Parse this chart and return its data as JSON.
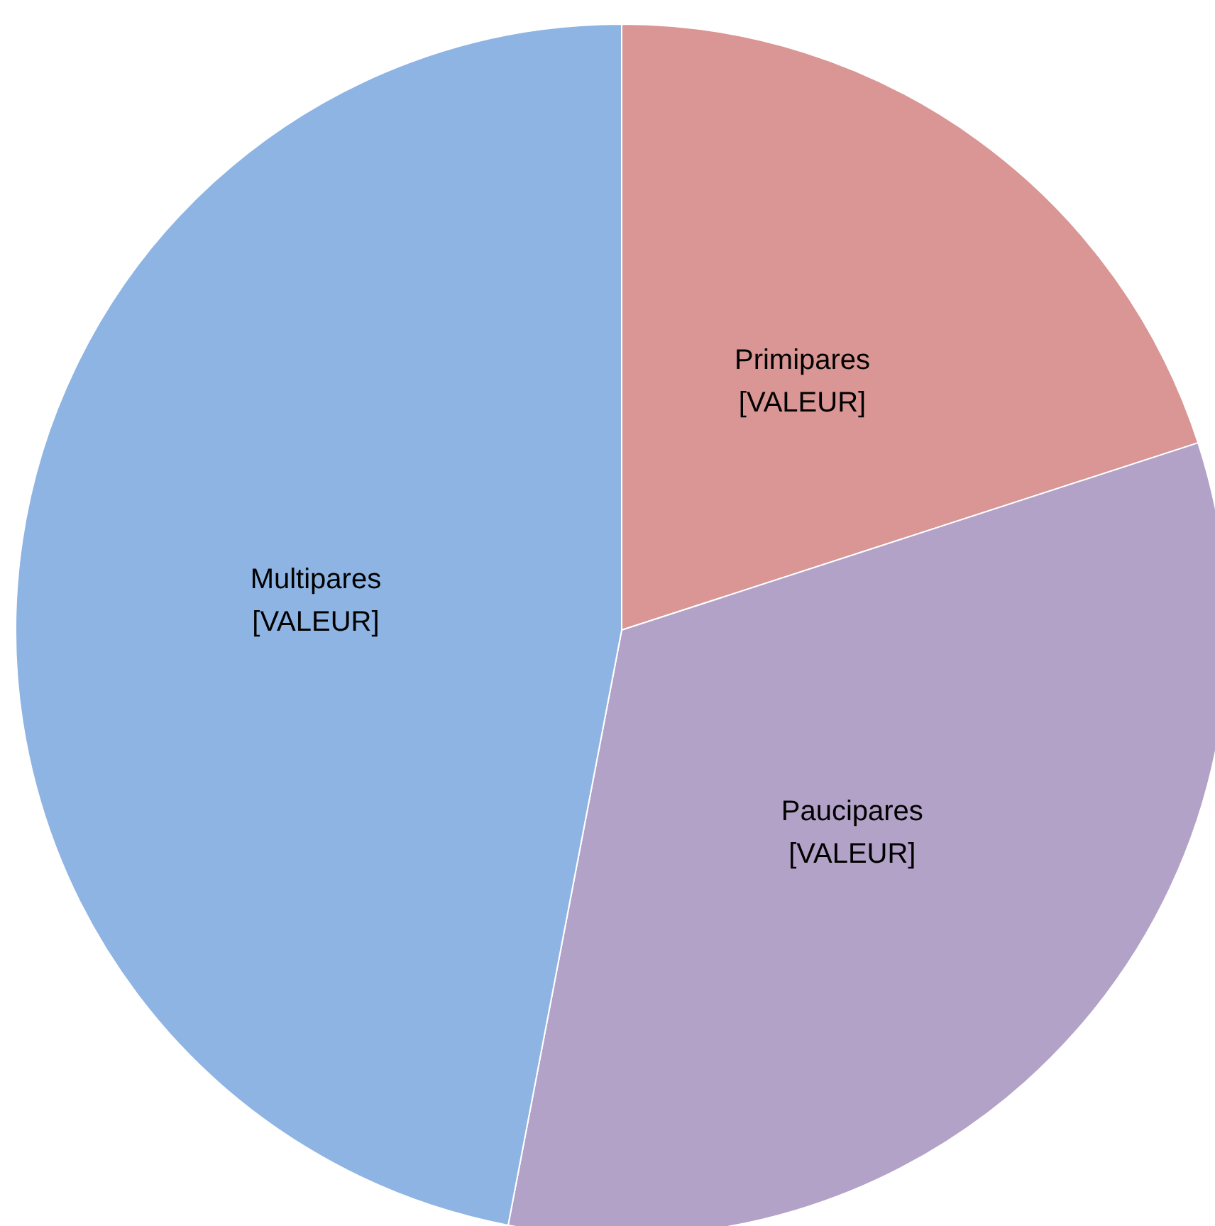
{
  "chart_data": {
    "type": "pie",
    "categories": [
      "Primipares",
      "Paucipares",
      "Multipares"
    ],
    "values": [
      20,
      33,
      47
    ],
    "value_labels": [
      "[VALEUR]",
      "[VALEUR]",
      "[VALEUR]"
    ],
    "colors": [
      "#d99694",
      "#b3a2c7",
      "#8eb4e3"
    ],
    "legend": false
  }
}
